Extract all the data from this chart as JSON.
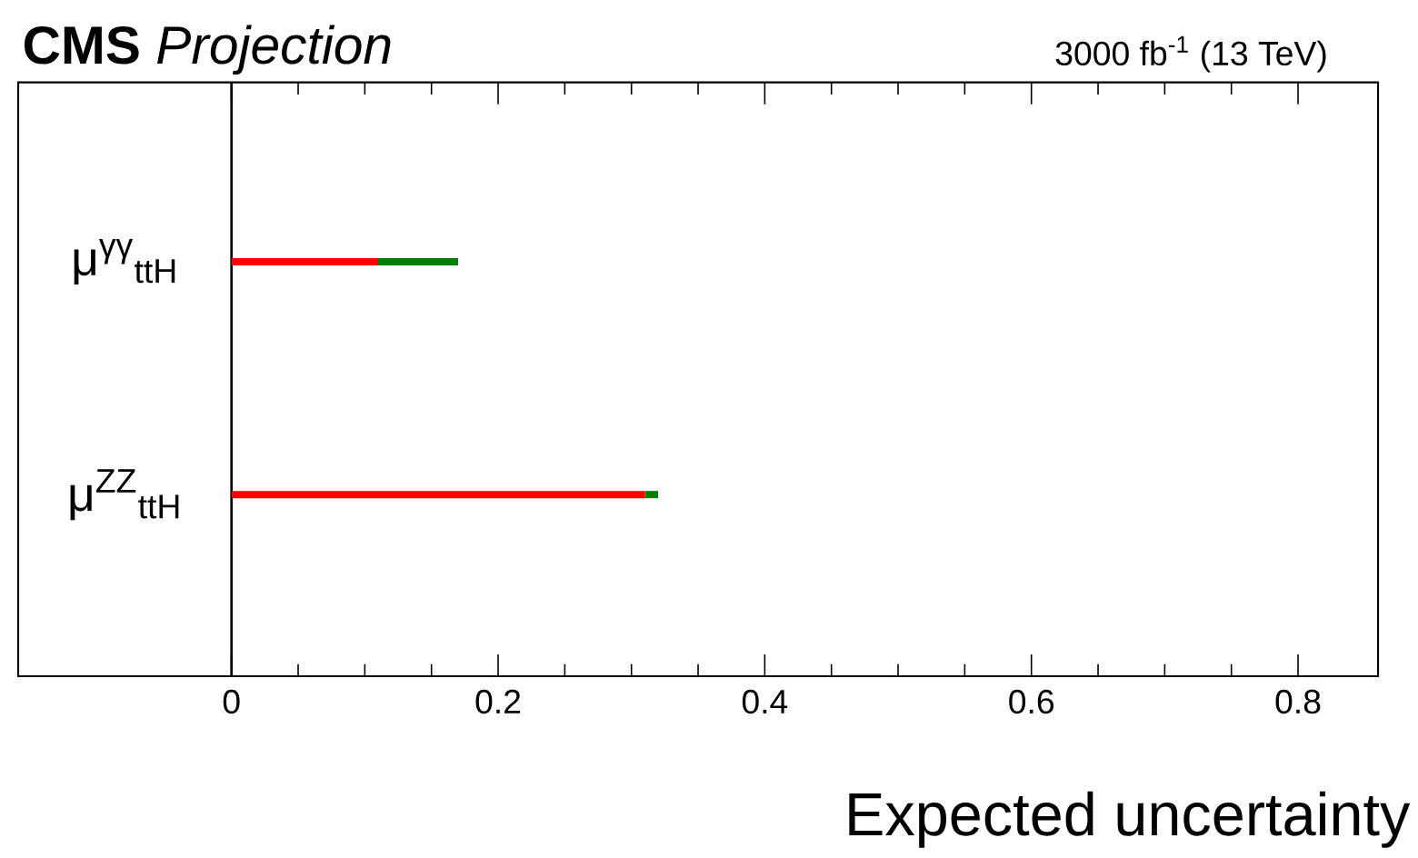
{
  "chart_data": {
    "type": "bar",
    "orientation": "horizontal",
    "stacked": true,
    "title": "**CMS** *Projection*",
    "subtitle": "3000 fb$^{-1}$ (13 TeV)",
    "xlabel": "Expected uncertainty",
    "categories": [
      "μ$^{γγ}$$_{ttH}$",
      "μ$^{ZZ}$$_{ttH}$"
    ],
    "series": [
      {
        "color": "#ff0000",
        "values": [
          0.11,
          0.31
        ]
      },
      {
        "color": "#008000",
        "values": [
          0.06,
          0.01
        ]
      }
    ],
    "xlim": [
      -0.16,
      0.86
    ],
    "xticks": [
      0,
      0.2,
      0.4,
      0.6,
      0.8
    ],
    "grid": false
  }
}
